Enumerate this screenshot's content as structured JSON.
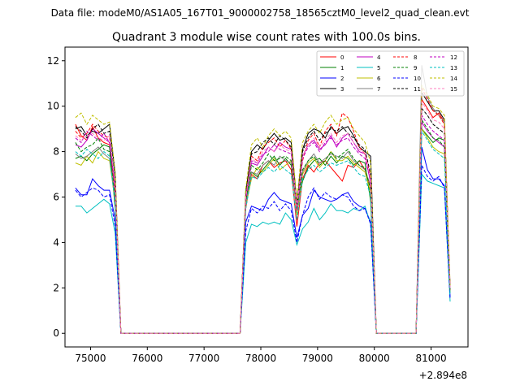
{
  "suptitle": "Data file: modeM0/AS1A05_167T01_9000002758_18565cztM0_level2_quad_clean.evt",
  "chart_data": {
    "type": "line",
    "title": "Quadrant 3 module wise count rates with 100.0s bins.",
    "xlabel": "",
    "ylabel": "",
    "x_offset_label": "+2.894e8",
    "xlim": [
      74550,
      81650
    ],
    "ylim": [
      -0.6,
      12.6
    ],
    "x_ticks": [
      75000,
      76000,
      77000,
      78000,
      79000,
      80000,
      81000
    ],
    "x_tick_labels": [
      "75000",
      "76000",
      "77000",
      "78000",
      "79000",
      "80000",
      "81000"
    ],
    "y_ticks": [
      0,
      2,
      4,
      6,
      8,
      10,
      12
    ],
    "y_tick_labels": [
      "0",
      "2",
      "4",
      "6",
      "8",
      "10",
      "12"
    ],
    "grid": false,
    "legend_position": "upper right",
    "legend_columns": 4,
    "x": [
      74735,
      74835,
      74935,
      75035,
      75135,
      75235,
      75335,
      75435,
      75535,
      75635,
      75735,
      75835,
      75935,
      76035,
      76135,
      76235,
      76335,
      76435,
      76535,
      76635,
      76735,
      76835,
      76935,
      77035,
      77135,
      77235,
      77335,
      77435,
      77535,
      77635,
      77735,
      77835,
      77935,
      78035,
      78135,
      78235,
      78335,
      78435,
      78535,
      78635,
      78735,
      78835,
      78935,
      79035,
      79135,
      79235,
      79335,
      79435,
      79535,
      79635,
      79735,
      79835,
      79935,
      80035,
      80135,
      80235,
      80335,
      80435,
      80535,
      80635,
      80735,
      80835,
      80935,
      81035,
      81135,
      81235,
      81335
    ],
    "series": [
      {
        "name": "0",
        "color": "#ff0000",
        "dash": "solid",
        "values": [
          9.2,
          8.7,
          8.5,
          9.1,
          8.6,
          8.4,
          8.3,
          6.2,
          0,
          0,
          0,
          0,
          0,
          0,
          0,
          0,
          0,
          0,
          0,
          0,
          0,
          0,
          0,
          0,
          0,
          0,
          0,
          0,
          0,
          0,
          5.5,
          7.0,
          6.8,
          7.4,
          7.6,
          7.3,
          7.5,
          7.6,
          7.2,
          4.7,
          6.8,
          7.4,
          7.1,
          7.5,
          7.6,
          7.3,
          7.0,
          6.7,
          7.4,
          7.3,
          7.6,
          7.2,
          6.4,
          0,
          0,
          0,
          0,
          0,
          0,
          0,
          0,
          10.3,
          9.9,
          9.5,
          9.7,
          9.3,
          1.8
        ]
      },
      {
        "name": "1",
        "color": "#008000",
        "dash": "solid",
        "values": [
          7.7,
          7.8,
          7.6,
          7.9,
          8.1,
          8.3,
          8.2,
          5.5,
          0,
          0,
          0,
          0,
          0,
          0,
          0,
          0,
          0,
          0,
          0,
          0,
          0,
          0,
          0,
          0,
          0,
          0,
          0,
          0,
          0,
          0,
          5.8,
          7.1,
          6.9,
          7.2,
          7.5,
          7.8,
          7.4,
          7.7,
          7.4,
          5.5,
          6.7,
          7.3,
          7.6,
          7.7,
          7.4,
          7.8,
          7.5,
          7.8,
          7.7,
          7.4,
          7.6,
          7.5,
          5.8,
          0,
          0,
          0,
          0,
          0,
          0,
          0,
          0,
          9.0,
          8.7,
          8.4,
          8.6,
          8.5,
          2.0
        ]
      },
      {
        "name": "2",
        "color": "#0000ff",
        "dash": "solid",
        "values": [
          6.4,
          6.1,
          6.1,
          6.8,
          6.5,
          6.3,
          6.3,
          5.0,
          0,
          0,
          0,
          0,
          0,
          0,
          0,
          0,
          0,
          0,
          0,
          0,
          0,
          0,
          0,
          0,
          0,
          0,
          0,
          0,
          0,
          0,
          4.9,
          5.6,
          5.5,
          5.4,
          5.9,
          6.2,
          5.9,
          5.8,
          5.7,
          4.2,
          5.2,
          5.5,
          6.3,
          6.0,
          5.9,
          5.8,
          5.9,
          6.1,
          6.2,
          5.8,
          5.6,
          5.5,
          4.9,
          0,
          0,
          0,
          0,
          0,
          0,
          0,
          0,
          8.2,
          7.2,
          6.8,
          6.8,
          6.5,
          1.6
        ]
      },
      {
        "name": "3",
        "color": "#000000",
        "dash": "solid",
        "values": [
          9.0,
          9.1,
          8.7,
          8.9,
          8.8,
          9.0,
          9.2,
          7.0,
          0,
          0,
          0,
          0,
          0,
          0,
          0,
          0,
          0,
          0,
          0,
          0,
          0,
          0,
          0,
          0,
          0,
          0,
          0,
          0,
          0,
          0,
          6.2,
          8.0,
          8.3,
          8.1,
          8.5,
          8.8,
          8.5,
          8.6,
          8.4,
          5.7,
          8.1,
          8.8,
          9.0,
          8.9,
          8.6,
          9.1,
          8.8,
          9.0,
          9.1,
          8.7,
          8.2,
          8.0,
          7.8,
          0,
          0,
          0,
          0,
          0,
          0,
          0,
          0,
          10.6,
          10.2,
          9.8,
          9.8,
          9.4,
          1.9
        ]
      },
      {
        "name": "4",
        "color": "#c000c0",
        "dash": "solid",
        "values": [
          8.3,
          8.2,
          8.5,
          9.0,
          8.8,
          8.6,
          8.4,
          6.4,
          0,
          0,
          0,
          0,
          0,
          0,
          0,
          0,
          0,
          0,
          0,
          0,
          0,
          0,
          0,
          0,
          0,
          0,
          0,
          0,
          0,
          0,
          5.9,
          7.5,
          7.4,
          7.8,
          8.2,
          8.0,
          8.4,
          8.2,
          8.1,
          5.3,
          7.8,
          8.3,
          8.5,
          8.1,
          8.3,
          8.7,
          8.2,
          8.6,
          8.8,
          8.4,
          8.0,
          7.9,
          6.6,
          0,
          0,
          0,
          0,
          0,
          0,
          0,
          0,
          9.3,
          8.9,
          8.6,
          8.4,
          8.2,
          2.0
        ]
      },
      {
        "name": "5",
        "color": "#00c0c0",
        "dash": "solid",
        "values": [
          5.6,
          5.6,
          5.3,
          5.5,
          5.7,
          5.9,
          5.7,
          4.4,
          0,
          0,
          0,
          0,
          0,
          0,
          0,
          0,
          0,
          0,
          0,
          0,
          0,
          0,
          0,
          0,
          0,
          0,
          0,
          0,
          0,
          0,
          4.0,
          4.8,
          4.7,
          4.9,
          4.8,
          4.9,
          4.8,
          5.3,
          5.0,
          3.9,
          4.6,
          4.9,
          5.5,
          5.0,
          5.3,
          5.7,
          5.4,
          5.4,
          5.3,
          5.5,
          5.4,
          5.6,
          4.8,
          0,
          0,
          0,
          0,
          0,
          0,
          0,
          0,
          7.0,
          6.7,
          6.6,
          6.5,
          6.4,
          1.4
        ]
      },
      {
        "name": "6",
        "color": "#c0c000",
        "dash": "solid",
        "values": [
          7.5,
          7.4,
          7.8,
          7.5,
          8.0,
          7.7,
          7.6,
          5.8,
          0,
          0,
          0,
          0,
          0,
          0,
          0,
          0,
          0,
          0,
          0,
          0,
          0,
          0,
          0,
          0,
          0,
          0,
          0,
          0,
          0,
          0,
          5.6,
          6.8,
          7.3,
          7.1,
          7.4,
          7.7,
          7.2,
          7.4,
          7.6,
          5.2,
          7.0,
          7.5,
          7.7,
          7.3,
          7.6,
          8.0,
          7.6,
          7.6,
          7.8,
          7.5,
          7.3,
          7.1,
          6.2,
          0,
          0,
          0,
          0,
          0,
          0,
          0,
          0,
          9.0,
          8.6,
          8.2,
          8.0,
          7.9,
          1.8
        ]
      },
      {
        "name": "7",
        "color": "#808080",
        "dash": "solid",
        "values": [
          7.9,
          7.7,
          7.8,
          8.0,
          8.2,
          7.9,
          7.7,
          5.9,
          0,
          0,
          0,
          0,
          0,
          0,
          0,
          0,
          0,
          0,
          0,
          0,
          0,
          0,
          0,
          0,
          0,
          0,
          0,
          0,
          0,
          0,
          5.7,
          7.1,
          7.0,
          7.4,
          7.6,
          7.4,
          7.8,
          7.6,
          7.5,
          5.4,
          7.1,
          7.6,
          7.9,
          7.5,
          7.7,
          7.9,
          7.8,
          7.7,
          8.0,
          7.6,
          7.4,
          7.2,
          6.5,
          0,
          0,
          0,
          0,
          0,
          0,
          0,
          0,
          11.8,
          10.4,
          9.9,
          9.6,
          9.3,
          2.0
        ]
      },
      {
        "name": "8",
        "color": "#ff0000",
        "dash": "dashed",
        "values": [
          8.9,
          8.6,
          8.8,
          9.2,
          8.9,
          8.7,
          8.6,
          6.3,
          0,
          0,
          0,
          0,
          0,
          0,
          0,
          0,
          0,
          0,
          0,
          0,
          0,
          0,
          0,
          0,
          0,
          0,
          0,
          0,
          0,
          0,
          6.0,
          7.8,
          7.6,
          8.2,
          8.4,
          8.6,
          8.2,
          8.5,
          8.1,
          5.6,
          7.6,
          8.5,
          8.8,
          8.2,
          8.9,
          9.2,
          8.7,
          9.7,
          9.5,
          8.9,
          8.2,
          7.9,
          6.9,
          0,
          0,
          0,
          0,
          0,
          0,
          0,
          0,
          10.8,
          10.3,
          9.8,
          9.6,
          9.2,
          2.0
        ]
      },
      {
        "name": "9",
        "color": "#008000",
        "dash": "dashed",
        "values": [
          8.4,
          8.0,
          8.2,
          8.3,
          8.6,
          8.1,
          8.0,
          6.0,
          0,
          0,
          0,
          0,
          0,
          0,
          0,
          0,
          0,
          0,
          0,
          0,
          0,
          0,
          0,
          0,
          0,
          0,
          0,
          0,
          0,
          0,
          5.8,
          7.4,
          7.2,
          7.5,
          7.9,
          7.6,
          7.7,
          7.8,
          7.6,
          5.5,
          7.2,
          7.6,
          7.8,
          7.4,
          7.6,
          8.0,
          7.7,
          7.9,
          8.1,
          7.7,
          7.4,
          7.3,
          6.3,
          0,
          0,
          0,
          0,
          0,
          0,
          0,
          0,
          9.4,
          9.0,
          8.6,
          8.5,
          8.2,
          1.9
        ]
      },
      {
        "name": "10",
        "color": "#0000ff",
        "dash": "dashed",
        "values": [
          6.3,
          6.0,
          6.2,
          6.4,
          6.3,
          6.0,
          6.1,
          4.7,
          0,
          0,
          0,
          0,
          0,
          0,
          0,
          0,
          0,
          0,
          0,
          0,
          0,
          0,
          0,
          0,
          0,
          0,
          0,
          0,
          0,
          0,
          4.5,
          5.5,
          5.3,
          5.6,
          5.5,
          5.8,
          5.4,
          5.7,
          5.4,
          4.0,
          5.2,
          6.0,
          6.4,
          5.9,
          6.2,
          6.0,
          5.9,
          6.1,
          6.0,
          5.6,
          5.4,
          5.5,
          4.8,
          0,
          0,
          0,
          0,
          0,
          0,
          0,
          0,
          7.4,
          6.9,
          6.7,
          6.9,
          6.4,
          1.5
        ]
      },
      {
        "name": "11",
        "color": "#000000",
        "dash": "dashed",
        "values": [
          9.1,
          8.9,
          8.6,
          9.0,
          9.2,
          8.8,
          8.9,
          6.6,
          0,
          0,
          0,
          0,
          0,
          0,
          0,
          0,
          0,
          0,
          0,
          0,
          0,
          0,
          0,
          0,
          0,
          0,
          0,
          0,
          0,
          0,
          6.3,
          7.9,
          8.0,
          8.4,
          8.6,
          8.3,
          8.7,
          8.5,
          8.2,
          5.8,
          8.0,
          8.6,
          8.9,
          8.5,
          8.8,
          9.0,
          8.9,
          9.1,
          8.8,
          8.6,
          8.3,
          8.1,
          7.0,
          0,
          0,
          0,
          0,
          0,
          0,
          0,
          0,
          9.9,
          9.6,
          9.2,
          9.0,
          8.8,
          2.0
        ]
      },
      {
        "name": "12",
        "color": "#c000c0",
        "dash": "dashed",
        "values": [
          8.6,
          8.4,
          8.9,
          8.7,
          8.5,
          8.8,
          8.4,
          6.3,
          0,
          0,
          0,
          0,
          0,
          0,
          0,
          0,
          0,
          0,
          0,
          0,
          0,
          0,
          0,
          0,
          0,
          0,
          0,
          0,
          0,
          0,
          5.9,
          7.6,
          7.5,
          7.9,
          8.0,
          8.3,
          8.1,
          8.0,
          7.9,
          5.4,
          7.7,
          8.2,
          8.4,
          8.0,
          8.4,
          8.6,
          8.3,
          8.5,
          8.6,
          8.2,
          7.9,
          7.7,
          6.7,
          0,
          0,
          0,
          0,
          0,
          0,
          0,
          0,
          9.6,
          9.2,
          8.9,
          8.7,
          8.5,
          1.9
        ]
      },
      {
        "name": "13",
        "color": "#00c0c0",
        "dash": "dashed",
        "values": [
          8.0,
          7.8,
          8.1,
          7.9,
          7.7,
          8.0,
          7.8,
          5.7,
          0,
          0,
          0,
          0,
          0,
          0,
          0,
          0,
          0,
          0,
          0,
          0,
          0,
          0,
          0,
          0,
          0,
          0,
          0,
          0,
          0,
          0,
          5.5,
          6.9,
          6.8,
          7.1,
          7.3,
          7.1,
          7.4,
          7.2,
          7.0,
          5.0,
          6.8,
          7.2,
          7.4,
          7.1,
          7.3,
          7.5,
          7.4,
          7.5,
          7.6,
          7.3,
          7.0,
          6.9,
          6.0,
          0,
          0,
          0,
          0,
          0,
          0,
          0,
          0,
          8.9,
          8.5,
          8.1,
          7.9,
          7.7,
          1.7
        ]
      },
      {
        "name": "14",
        "color": "#c0c000",
        "dash": "dashed",
        "values": [
          9.5,
          9.7,
          9.2,
          9.6,
          9.4,
          9.2,
          9.3,
          7.1,
          0,
          0,
          0,
          0,
          0,
          0,
          0,
          0,
          0,
          0,
          0,
          0,
          0,
          0,
          0,
          0,
          0,
          0,
          0,
          0,
          0,
          0,
          6.4,
          8.3,
          8.6,
          8.2,
          8.7,
          9.0,
          8.7,
          8.9,
          8.6,
          5.9,
          8.4,
          8.9,
          9.2,
          8.8,
          9.3,
          9.6,
          9.2,
          9.4,
          9.5,
          9.0,
          8.7,
          8.4,
          7.5,
          0,
          0,
          0,
          0,
          0,
          0,
          0,
          0,
          10.9,
          10.5,
          10.0,
          9.9,
          9.6,
          2.1
        ]
      },
      {
        "name": "15",
        "color": "#ff80c0",
        "dash": "dashed",
        "values": [
          8.7,
          8.5,
          8.7,
          8.8,
          8.6,
          8.5,
          8.7,
          6.5,
          0,
          0,
          0,
          0,
          0,
          0,
          0,
          0,
          0,
          0,
          0,
          0,
          0,
          0,
          0,
          0,
          0,
          0,
          0,
          0,
          0,
          0,
          6.0,
          7.7,
          7.5,
          8.0,
          8.2,
          8.0,
          8.3,
          8.1,
          8.0,
          5.6,
          7.8,
          8.3,
          8.6,
          8.2,
          8.5,
          8.8,
          8.4,
          8.7,
          8.8,
          8.4,
          8.1,
          7.9,
          6.8,
          0,
          0,
          0,
          0,
          0,
          0,
          0,
          0,
          10.2,
          9.8,
          9.4,
          9.3,
          9.0,
          2.0
        ]
      }
    ]
  }
}
